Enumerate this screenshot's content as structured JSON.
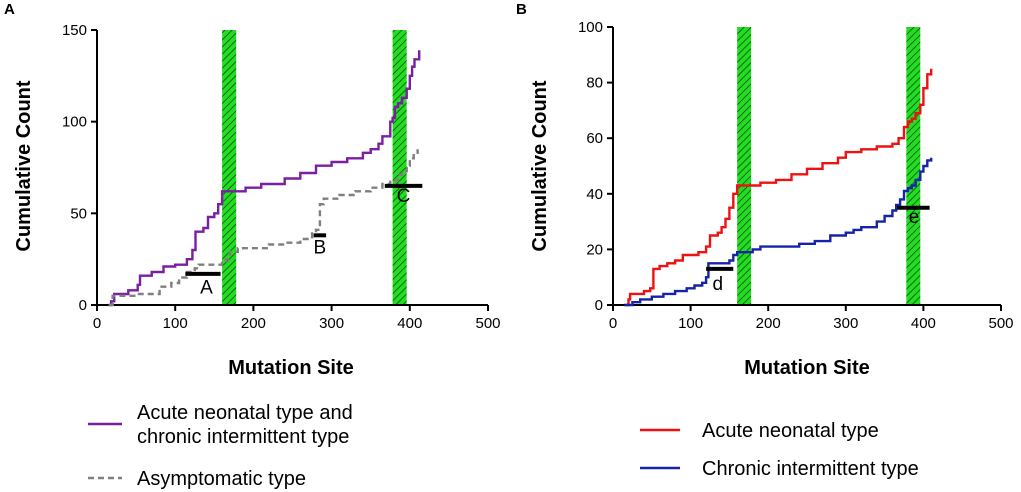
{
  "chart_data": [
    {
      "panel": "A",
      "type": "line",
      "xlabel": "Mutation Site",
      "ylabel": "Cumulative Count",
      "xlim": [
        0,
        500
      ],
      "ylim": [
        0,
        150
      ],
      "xticks": [
        0,
        100,
        200,
        300,
        400,
        500
      ],
      "yticks": [
        0,
        50,
        100,
        150
      ],
      "xtick_labels": [
        "0",
        "100",
        "200",
        "300",
        "400",
        "500"
      ],
      "ytick_labels": [
        "0",
        "50",
        "100",
        "150"
      ],
      "shaded_regions": [
        {
          "x": [
            160,
            178
          ],
          "color": "#22dd22",
          "pattern": "hatched"
        },
        {
          "x": [
            378,
            396
          ],
          "color": "#22dd22",
          "pattern": "hatched"
        }
      ],
      "series": [
        {
          "name": "Acute neonatal type and chronic intermittent type",
          "legend": [
            "Acute neonatal type and",
            "chronic intermittent type"
          ],
          "color": "#7a1fa2",
          "style": "solid",
          "points": [
            [
              15,
              0
            ],
            [
              18,
              2
            ],
            [
              22,
              6
            ],
            [
              40,
              8
            ],
            [
              52,
              11
            ],
            [
              55,
              16
            ],
            [
              70,
              18
            ],
            [
              85,
              21
            ],
            [
              100,
              22
            ],
            [
              115,
              25
            ],
            [
              122,
              30
            ],
            [
              126,
              40
            ],
            [
              136,
              42
            ],
            [
              142,
              48
            ],
            [
              150,
              50
            ],
            [
              155,
              55
            ],
            [
              160,
              62
            ],
            [
              190,
              64
            ],
            [
              210,
              66
            ],
            [
              240,
              69
            ],
            [
              260,
              72
            ],
            [
              280,
              76
            ],
            [
              300,
              78
            ],
            [
              320,
              80
            ],
            [
              340,
              83
            ],
            [
              350,
              85
            ],
            [
              360,
              88
            ],
            [
              365,
              92
            ],
            [
              375,
              100
            ],
            [
              378,
              102
            ],
            [
              381,
              108
            ],
            [
              385,
              110
            ],
            [
              390,
              113
            ],
            [
              396,
              118
            ],
            [
              400,
              125
            ],
            [
              403,
              130
            ],
            [
              406,
              134
            ],
            [
              412,
              139
            ]
          ]
        },
        {
          "name": "Asymptomatic type",
          "legend": [
            "Asymptomatic type"
          ],
          "color": "#808080",
          "style": "dashed",
          "points": [
            [
              15,
              0
            ],
            [
              20,
              5
            ],
            [
              50,
              6
            ],
            [
              80,
              10
            ],
            [
              95,
              12
            ],
            [
              105,
              15
            ],
            [
              115,
              18
            ],
            [
              125,
              20
            ],
            [
              130,
              22
            ],
            [
              150,
              22
            ],
            [
              160,
              23
            ],
            [
              165,
              25
            ],
            [
              170,
              29
            ],
            [
              180,
              31
            ],
            [
              200,
              31
            ],
            [
              220,
              33
            ],
            [
              240,
              34
            ],
            [
              260,
              36
            ],
            [
              275,
              39
            ],
            [
              280,
              41
            ],
            [
              285,
              55
            ],
            [
              290,
              58
            ],
            [
              310,
              60
            ],
            [
              330,
              62
            ],
            [
              350,
              64
            ],
            [
              365,
              66
            ],
            [
              375,
              68
            ],
            [
              385,
              71
            ],
            [
              390,
              73
            ],
            [
              396,
              76
            ],
            [
              400,
              80
            ],
            [
              405,
              83
            ],
            [
              410,
              85
            ]
          ]
        }
      ],
      "annotations": [
        {
          "text": "A",
          "x": 140,
          "y": 10,
          "bar": {
            "x": [
              113,
              158
            ],
            "y": 17
          }
        },
        {
          "text": "B",
          "x": 285,
          "y": 32,
          "bar": {
            "x": [
              277,
              293
            ],
            "y": 38
          }
        },
        {
          "text": "C",
          "x": 392,
          "y": 60,
          "bar": {
            "x": [
              368,
              416
            ],
            "y": 65
          }
        }
      ]
    },
    {
      "panel": "B",
      "type": "line",
      "xlabel": "Mutation Site",
      "ylabel": "Cumulative Count",
      "xlim": [
        0,
        500
      ],
      "ylim": [
        0,
        100
      ],
      "xticks": [
        0,
        100,
        200,
        300,
        400,
        500
      ],
      "yticks": [
        0,
        20,
        40,
        60,
        80,
        100
      ],
      "xtick_labels": [
        "0",
        "100",
        "200",
        "300",
        "400",
        "500"
      ],
      "ytick_labels": [
        "0",
        "20",
        "40",
        "60",
        "80",
        "100"
      ],
      "shaded_regions": [
        {
          "x": [
            160,
            178
          ],
          "color": "#22dd22",
          "pattern": "hatched"
        },
        {
          "x": [
            378,
            396
          ],
          "color": "#22dd22",
          "pattern": "hatched"
        }
      ],
      "series": [
        {
          "name": "Acute neonatal type",
          "legend": [
            "Acute neonatal type"
          ],
          "color": "#ee1111",
          "style": "solid",
          "points": [
            [
              15,
              0
            ],
            [
              20,
              2
            ],
            [
              22,
              4
            ],
            [
              40,
              5
            ],
            [
              48,
              6
            ],
            [
              52,
              13
            ],
            [
              60,
              14
            ],
            [
              70,
              15
            ],
            [
              80,
              16
            ],
            [
              90,
              18
            ],
            [
              100,
              18
            ],
            [
              110,
              19
            ],
            [
              120,
              21
            ],
            [
              125,
              25
            ],
            [
              135,
              26
            ],
            [
              140,
              28
            ],
            [
              145,
              31
            ],
            [
              150,
              35
            ],
            [
              155,
              40
            ],
            [
              160,
              43
            ],
            [
              170,
              43
            ],
            [
              180,
              43
            ],
            [
              190,
              44
            ],
            [
              210,
              45
            ],
            [
              230,
              47
            ],
            [
              250,
              49
            ],
            [
              270,
              51
            ],
            [
              290,
              53
            ],
            [
              300,
              55
            ],
            [
              320,
              56
            ],
            [
              340,
              57
            ],
            [
              360,
              58
            ],
            [
              368,
              60
            ],
            [
              375,
              64
            ],
            [
              380,
              66
            ],
            [
              385,
              67
            ],
            [
              390,
              69
            ],
            [
              396,
              72
            ],
            [
              400,
              78
            ],
            [
              405,
              83
            ],
            [
              410,
              85
            ]
          ]
        },
        {
          "name": "Chronic intermittent type",
          "legend": [
            "Chronic intermittent type"
          ],
          "color": "#1522aa",
          "style": "solid",
          "points": [
            [
              15,
              0
            ],
            [
              25,
              1
            ],
            [
              35,
              2
            ],
            [
              50,
              3
            ],
            [
              65,
              4
            ],
            [
              80,
              5
            ],
            [
              95,
              6
            ],
            [
              105,
              7
            ],
            [
              115,
              8
            ],
            [
              120,
              10
            ],
            [
              123,
              15
            ],
            [
              140,
              15
            ],
            [
              150,
              16
            ],
            [
              155,
              18
            ],
            [
              160,
              19
            ],
            [
              170,
              19
            ],
            [
              180,
              20
            ],
            [
              190,
              21
            ],
            [
              220,
              21
            ],
            [
              240,
              22
            ],
            [
              260,
              23
            ],
            [
              280,
              25
            ],
            [
              300,
              26
            ],
            [
              310,
              27
            ],
            [
              320,
              28
            ],
            [
              340,
              30
            ],
            [
              350,
              32
            ],
            [
              360,
              34
            ],
            [
              365,
              36
            ],
            [
              370,
              38
            ],
            [
              375,
              41
            ],
            [
              380,
              42
            ],
            [
              385,
              43
            ],
            [
              390,
              45
            ],
            [
              396,
              48
            ],
            [
              400,
              50
            ],
            [
              405,
              52
            ],
            [
              410,
              53
            ]
          ]
        }
      ],
      "annotations": [
        {
          "text": "d",
          "x": 135,
          "y": 8,
          "bar": {
            "x": [
              120,
              155
            ],
            "y": 13
          }
        },
        {
          "text": "e",
          "x": 388,
          "y": 32,
          "bar": {
            "x": [
              366,
              408
            ],
            "y": 35
          }
        }
      ]
    }
  ]
}
